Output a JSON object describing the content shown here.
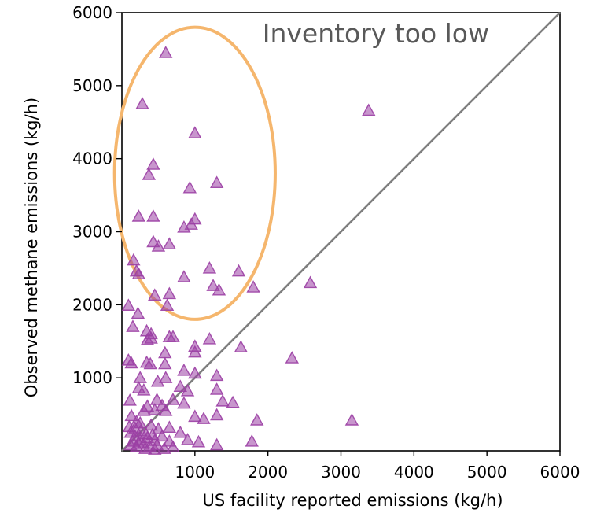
{
  "chart_data": {
    "type": "scatter",
    "title": "",
    "xlabel": "US facility reported emissions (kg/h)",
    "ylabel": "Observed methane emissions (kg/h)",
    "xlim": [
      0,
      6000
    ],
    "ylim": [
      0,
      6000
    ],
    "xticks": [
      "1000",
      "2000",
      "3000",
      "4000",
      "5000",
      "6000"
    ],
    "yticks": [
      "1000",
      "2000",
      "3000",
      "4000",
      "5000",
      "6000"
    ],
    "grid": false,
    "marker": "triangle",
    "marker_color": "#9b3fa4",
    "reference_line": {
      "kind": "1:1",
      "from": [
        0,
        0
      ],
      "to": [
        6000,
        6000
      ],
      "color": "#7f7f7f"
    },
    "annotation": "Inventory too low",
    "highlight_ellipse": {
      "color": "#f5b66d",
      "center": [
        1000,
        3800
      ],
      "radius": [
        1100,
        2000
      ]
    },
    "series": [
      {
        "points": [
          [
            600,
            5450
          ],
          [
            280,
            4750
          ],
          [
            1000,
            4350
          ],
          [
            3380,
            4660
          ],
          [
            430,
            3920
          ],
          [
            370,
            3780
          ],
          [
            1300,
            3670
          ],
          [
            930,
            3600
          ],
          [
            230,
            3210
          ],
          [
            430,
            3210
          ],
          [
            1000,
            3170
          ],
          [
            950,
            3100
          ],
          [
            850,
            3060
          ],
          [
            430,
            2860
          ],
          [
            500,
            2800
          ],
          [
            650,
            2830
          ],
          [
            160,
            2610
          ],
          [
            200,
            2460
          ],
          [
            230,
            2420
          ],
          [
            1200,
            2500
          ],
          [
            1600,
            2460
          ],
          [
            850,
            2380
          ],
          [
            2580,
            2300
          ],
          [
            1250,
            2260
          ],
          [
            1330,
            2200
          ],
          [
            1800,
            2240
          ],
          [
            450,
            2130
          ],
          [
            650,
            2150
          ],
          [
            620,
            1990
          ],
          [
            90,
            1990
          ],
          [
            220,
            1880
          ],
          [
            150,
            1700
          ],
          [
            340,
            1640
          ],
          [
            400,
            1600
          ],
          [
            350,
            1520
          ],
          [
            400,
            1540
          ],
          [
            650,
            1560
          ],
          [
            700,
            1560
          ],
          [
            1000,
            1430
          ],
          [
            1000,
            1350
          ],
          [
            1200,
            1530
          ],
          [
            1630,
            1420
          ],
          [
            2330,
            1270
          ],
          [
            130,
            1200
          ],
          [
            90,
            1240
          ],
          [
            340,
            1210
          ],
          [
            390,
            1190
          ],
          [
            590,
            1190
          ],
          [
            590,
            1340
          ],
          [
            850,
            1100
          ],
          [
            1000,
            1060
          ],
          [
            250,
            1000
          ],
          [
            600,
            1000
          ],
          [
            1300,
            1030
          ],
          [
            490,
            950
          ],
          [
            230,
            860
          ],
          [
            300,
            830
          ],
          [
            800,
            880
          ],
          [
            900,
            820
          ],
          [
            1300,
            840
          ],
          [
            110,
            690
          ],
          [
            480,
            700
          ],
          [
            700,
            700
          ],
          [
            550,
            620
          ],
          [
            1380,
            680
          ],
          [
            1520,
            660
          ],
          [
            350,
            610
          ],
          [
            450,
            560
          ],
          [
            600,
            550
          ],
          [
            850,
            650
          ],
          [
            300,
            550
          ],
          [
            1000,
            470
          ],
          [
            1120,
            440
          ],
          [
            1300,
            490
          ],
          [
            1850,
            420
          ],
          [
            3150,
            420
          ],
          [
            130,
            480
          ],
          [
            200,
            400
          ],
          [
            250,
            380
          ],
          [
            400,
            350
          ],
          [
            500,
            300
          ],
          [
            650,
            320
          ],
          [
            800,
            250
          ],
          [
            120,
            250
          ],
          [
            180,
            200
          ],
          [
            250,
            150
          ],
          [
            350,
            180
          ],
          [
            450,
            140
          ],
          [
            550,
            200
          ],
          [
            650,
            130
          ],
          [
            900,
            150
          ],
          [
            1050,
            120
          ],
          [
            1300,
            80
          ],
          [
            1780,
            130
          ],
          [
            120,
            80
          ],
          [
            200,
            60
          ],
          [
            300,
            100
          ],
          [
            380,
            60
          ],
          [
            480,
            80
          ],
          [
            580,
            30
          ],
          [
            100,
            330
          ],
          [
            180,
            310
          ],
          [
            260,
            270
          ],
          [
            330,
            230
          ],
          [
            420,
            220
          ],
          [
            150,
            130
          ],
          [
            230,
            100
          ],
          [
            320,
            30
          ],
          [
            450,
            20
          ],
          [
            700,
            50
          ]
        ]
      }
    ]
  }
}
